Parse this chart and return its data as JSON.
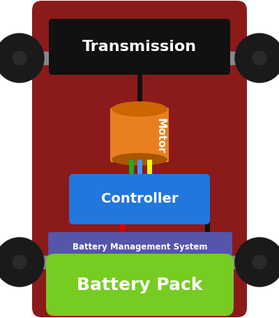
{
  "bg_color": "#ffffff",
  "car_body_color": "#8B1A1A",
  "wheel_color": "#1a1a1a",
  "axle_color": "#888888",
  "transmission_color": "#111111",
  "transmission_text": "Transmission",
  "motor_color_top": "#CC6600",
  "motor_color_body": "#E88020",
  "motor_text": "Motor",
  "controller_color": "#2277DD",
  "controller_text": "Controller",
  "bms_color": "#5555AA",
  "bms_text": "Battery Management System",
  "battery_color": "#77CC22",
  "battery_text": "Battery Pack",
  "wire_colors_motor": [
    "#22AA22",
    "#4499FF",
    "#FFFF00"
  ],
  "wire_color_red": "#DD0000",
  "wire_color_black": "#111111"
}
